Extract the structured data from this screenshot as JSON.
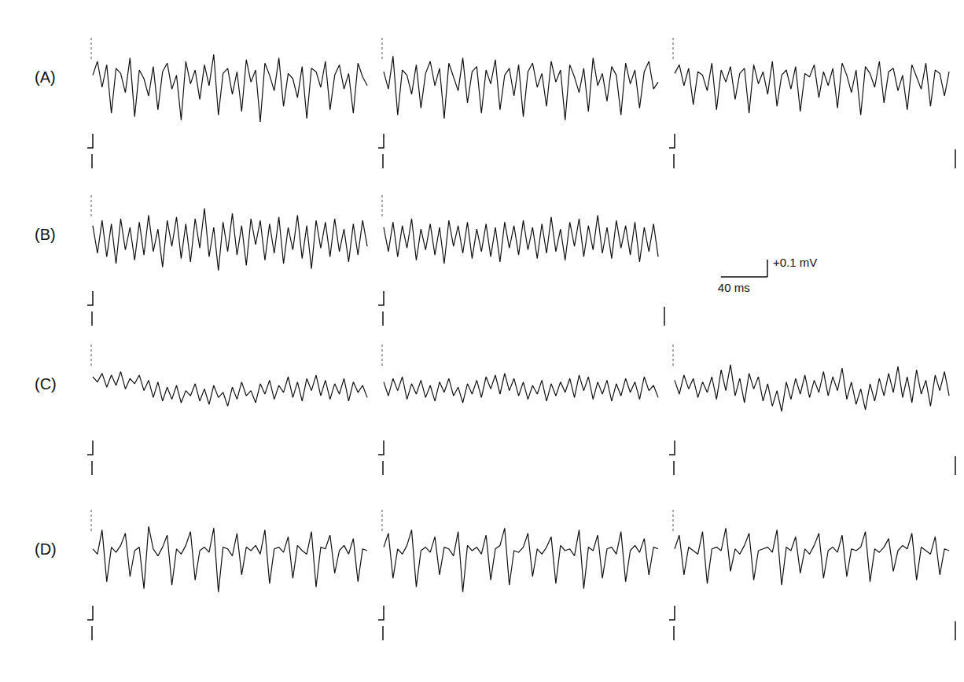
{
  "chart_data": {
    "type": "line",
    "color": "#111111",
    "tick_labels": false,
    "grid": false,
    "xlim": [
      0,
      240
    ],
    "ylim": [
      -0.3,
      0.2
    ],
    "x": [
      0,
      4,
      8,
      12,
      16,
      20,
      24,
      28,
      32,
      36,
      40,
      44,
      48,
      52,
      56,
      60,
      64,
      68,
      72,
      76,
      80,
      84,
      88,
      92,
      96,
      100,
      104,
      108,
      112,
      116,
      120,
      124,
      128,
      132,
      136,
      140,
      144,
      148,
      152,
      156,
      160,
      164,
      168,
      172,
      176,
      180,
      184,
      188,
      192,
      196,
      200,
      204,
      208,
      212,
      216,
      220,
      224,
      228,
      232,
      236
    ],
    "scale_bar": {
      "x": 40,
      "x_label": "40 ms",
      "y": 0.1,
      "y_label": "+0.1 mV"
    },
    "panels": [
      {
        "label": "(A)",
        "segments": [
          {
            "values": [
              0.02,
              0.1,
              -0.05,
              0.08,
              -0.2,
              0.06,
              0.03,
              -0.08,
              0.12,
              -0.22,
              0.05,
              0.0,
              -0.1,
              0.07,
              -0.18,
              0.04,
              0.09,
              -0.06,
              0.02,
              -0.24,
              0.1,
              -0.03,
              0.05,
              -0.12,
              0.08,
              -0.04,
              0.14,
              -0.21,
              0.03,
              0.06,
              -0.09,
              0.04,
              -0.19,
              0.11,
              -0.02,
              0.05,
              -0.25,
              0.09,
              0.02,
              -0.07,
              0.12,
              -0.16,
              0.03,
              0.0,
              -0.11,
              0.07,
              -0.23,
              0.06,
              0.04,
              -0.05,
              0.1,
              -0.18,
              0.02,
              0.08,
              -0.06,
              0.03,
              -0.2,
              0.09,
              0.01,
              -0.04
            ]
          },
          {
            "values": [
              0.04,
              -0.06,
              0.13,
              -0.21,
              0.05,
              0.02,
              -0.09,
              0.08,
              -0.17,
              0.03,
              0.1,
              -0.04,
              0.06,
              -0.23,
              0.09,
              0.01,
              -0.07,
              0.12,
              -0.14,
              0.04,
              0.07,
              -0.2,
              0.05,
              -0.03,
              0.11,
              -0.18,
              0.02,
              0.06,
              -0.1,
              0.08,
              -0.22,
              0.04,
              0.09,
              -0.05,
              0.03,
              -0.16,
              0.1,
              -0.02,
              0.05,
              -0.24,
              0.08,
              0.01,
              -0.08,
              0.06,
              -0.19,
              0.12,
              -0.04,
              0.03,
              -0.13,
              0.07,
              0.02,
              -0.21,
              0.09,
              -0.03,
              0.05,
              -0.17,
              0.04,
              0.1,
              -0.06,
              -0.02
            ]
          },
          {
            "values": [
              0.03,
              0.08,
              -0.04,
              0.06,
              -0.15,
              0.04,
              0.02,
              -0.07,
              0.09,
              -0.18,
              0.05,
              -0.02,
              0.07,
              -0.12,
              0.03,
              0.06,
              -0.2,
              0.08,
              -0.03,
              0.04,
              -0.09,
              0.1,
              -0.16,
              0.02,
              0.05,
              -0.06,
              0.07,
              -0.19,
              0.03,
              0.01,
              0.08,
              -0.11,
              0.04,
              -0.04,
              0.06,
              -0.17,
              0.09,
              0.02,
              -0.08,
              0.05,
              -0.21,
              0.07,
              0.03,
              -0.05,
              0.1,
              -0.14,
              0.04,
              0.06,
              -0.07,
              0.02,
              -0.18,
              0.08,
              0.01,
              -0.06,
              0.09,
              -0.16,
              0.05,
              0.03,
              -0.1,
              0.04
            ]
          }
        ]
      },
      {
        "label": "(B)",
        "segments": [
          {
            "values": [
              0.06,
              -0.1,
              0.09,
              -0.12,
              0.07,
              -0.16,
              0.1,
              -0.08,
              0.05,
              -0.14,
              0.08,
              -0.11,
              0.12,
              -0.09,
              0.04,
              -0.18,
              0.09,
              -0.06,
              0.11,
              -0.13,
              0.07,
              -0.15,
              0.1,
              -0.07,
              0.16,
              -0.12,
              0.05,
              -0.2,
              0.08,
              -0.09,
              0.13,
              -0.11,
              0.06,
              -0.17,
              0.1,
              -0.05,
              0.09,
              -0.14,
              0.07,
              -0.1,
              0.11,
              -0.16,
              0.05,
              -0.08,
              0.12,
              -0.13,
              0.06,
              -0.19,
              0.09,
              -0.07,
              0.08,
              -0.12,
              0.1,
              -0.09,
              0.04,
              -0.15,
              0.07,
              -0.11,
              0.09,
              -0.06
            ]
          },
          {
            "values": [
              0.05,
              -0.09,
              0.08,
              -0.12,
              0.06,
              -0.07,
              0.1,
              -0.14,
              0.04,
              -0.08,
              0.07,
              -0.11,
              0.05,
              -0.16,
              0.09,
              -0.06,
              0.06,
              -0.1,
              0.08,
              -0.13,
              0.04,
              -0.09,
              0.07,
              -0.12,
              0.05,
              -0.15,
              0.08,
              -0.07,
              0.06,
              -0.11,
              0.09,
              -0.08,
              0.05,
              -0.13,
              0.07,
              -0.1,
              0.11,
              -0.09,
              0.04,
              -0.14,
              0.08,
              -0.06,
              0.1,
              -0.12,
              0.06,
              -0.08,
              0.12,
              -0.1,
              0.05,
              -0.13,
              0.09,
              -0.07,
              0.06,
              -0.11,
              0.08,
              -0.15,
              0.05,
              -0.09,
              0.07,
              -0.12
            ]
          }
        ]
      },
      {
        "label": "(C)",
        "segments": [
          {
            "values": [
              0.05,
              0.02,
              0.07,
              -0.01,
              0.06,
              0.0,
              0.08,
              -0.02,
              0.04,
              0.01,
              0.06,
              -0.03,
              0.03,
              -0.07,
              0.02,
              -0.09,
              -0.01,
              -0.08,
              0.0,
              -0.1,
              -0.03,
              -0.06,
              0.01,
              -0.09,
              -0.02,
              -0.11,
              0.0,
              -0.07,
              -0.04,
              -0.12,
              -0.01,
              -0.08,
              0.02,
              -0.06,
              -0.03,
              -0.1,
              0.01,
              -0.05,
              0.03,
              -0.08,
              0.0,
              -0.04,
              0.05,
              -0.07,
              0.02,
              -0.09,
              0.04,
              -0.03,
              0.06,
              -0.06,
              0.03,
              -0.08,
              0.01,
              -0.05,
              0.04,
              -0.09,
              0.02,
              -0.04,
              0.0,
              -0.07
            ]
          },
          {
            "values": [
              0.02,
              -0.06,
              0.04,
              -0.03,
              0.05,
              -0.08,
              0.01,
              -0.05,
              0.03,
              -0.07,
              0.0,
              -0.09,
              0.02,
              -0.04,
              0.04,
              -0.06,
              -0.01,
              -0.1,
              0.01,
              -0.05,
              0.03,
              -0.07,
              0.05,
              -0.02,
              0.06,
              -0.05,
              0.07,
              -0.03,
              0.04,
              -0.06,
              0.02,
              -0.08,
              0.0,
              -0.05,
              0.03,
              -0.09,
              0.01,
              -0.06,
              0.02,
              -0.04,
              0.04,
              -0.07,
              0.06,
              -0.03,
              0.05,
              -0.08,
              0.02,
              -0.05,
              0.03,
              -0.09,
              0.01,
              -0.06,
              0.04,
              -0.04,
              0.02,
              -0.08,
              0.05,
              -0.03,
              0.0,
              -0.07
            ]
          },
          {
            "values": [
              0.03,
              -0.05,
              0.06,
              -0.02,
              0.04,
              -0.07,
              0.02,
              -0.04,
              0.05,
              -0.08,
              0.09,
              -0.03,
              0.12,
              -0.06,
              0.04,
              -0.1,
              0.07,
              -0.02,
              0.05,
              -0.09,
              0.01,
              -0.12,
              -0.03,
              -0.15,
              0.02,
              -0.08,
              0.04,
              -0.05,
              0.06,
              -0.07,
              0.03,
              -0.04,
              0.08,
              -0.06,
              0.05,
              -0.03,
              0.1,
              -0.08,
              0.02,
              -0.11,
              -0.02,
              -0.14,
              0.01,
              -0.09,
              0.04,
              -0.06,
              0.07,
              -0.04,
              0.11,
              -0.07,
              0.05,
              -0.1,
              0.09,
              -0.05,
              0.03,
              -0.12,
              0.06,
              -0.03,
              0.08,
              -0.06
            ]
          }
        ]
      },
      {
        "label": "(D)",
        "segments": [
          {
            "values": [
              0.01,
              -0.02,
              0.12,
              -0.18,
              0.02,
              -0.01,
              0.03,
              0.1,
              -0.15,
              0.0,
              0.02,
              -0.22,
              0.14,
              0.01,
              -0.03,
              0.02,
              0.09,
              -0.2,
              0.01,
              -0.02,
              0.03,
              0.11,
              -0.17,
              0.0,
              0.02,
              -0.01,
              0.13,
              -0.24,
              0.02,
              0.01,
              -0.03,
              0.1,
              -0.14,
              0.02,
              0.0,
              0.03,
              -0.02,
              0.12,
              -0.19,
              0.01,
              0.02,
              -0.01,
              0.08,
              -0.16,
              0.03,
              0.0,
              -0.02,
              0.11,
              -0.21,
              0.02,
              0.01,
              0.09,
              -0.13,
              0.0,
              0.03,
              -0.02,
              0.07,
              -0.18,
              0.01,
              0.0
            ]
          },
          {
            "values": [
              0.02,
              0.1,
              -0.16,
              0.01,
              -0.02,
              0.03,
              0.12,
              -0.21,
              0.0,
              0.02,
              -0.01,
              0.08,
              -0.14,
              0.02,
              0.01,
              -0.03,
              0.11,
              -0.24,
              0.03,
              0.0,
              0.02,
              -0.02,
              0.09,
              -0.17,
              0.01,
              0.03,
              0.13,
              -0.2,
              0.0,
              -0.01,
              0.02,
              0.1,
              -0.15,
              0.01,
              -0.02,
              0.02,
              0.08,
              -0.19,
              0.03,
              0.0,
              0.01,
              -0.03,
              0.12,
              -0.22,
              0.02,
              0.0,
              0.09,
              -0.16,
              0.01,
              0.02,
              -0.02,
              0.11,
              -0.18,
              0.0,
              0.03,
              -0.01,
              0.07,
              -0.14,
              0.02,
              0.01
            ]
          },
          {
            "values": [
              0.01,
              0.09,
              -0.14,
              0.02,
              0.0,
              -0.02,
              0.11,
              -0.19,
              0.01,
              0.02,
              0.0,
              0.13,
              -0.12,
              0.01,
              -0.02,
              0.03,
              0.1,
              -0.17,
              0.0,
              0.01,
              0.02,
              -0.01,
              0.12,
              -0.2,
              0.02,
              0.0,
              0.08,
              -0.13,
              0.01,
              -0.02,
              0.03,
              0.1,
              -0.16,
              0.0,
              0.02,
              -0.01,
              0.09,
              -0.15,
              0.01,
              0.0,
              0.02,
              0.11,
              -0.18,
              0.01,
              -0.01,
              0.02,
              0.07,
              -0.12,
              0.0,
              0.03,
              0.01,
              0.1,
              -0.17,
              0.02,
              0.0,
              -0.02,
              0.08,
              -0.14,
              0.01,
              0.0
            ]
          }
        ]
      }
    ]
  }
}
